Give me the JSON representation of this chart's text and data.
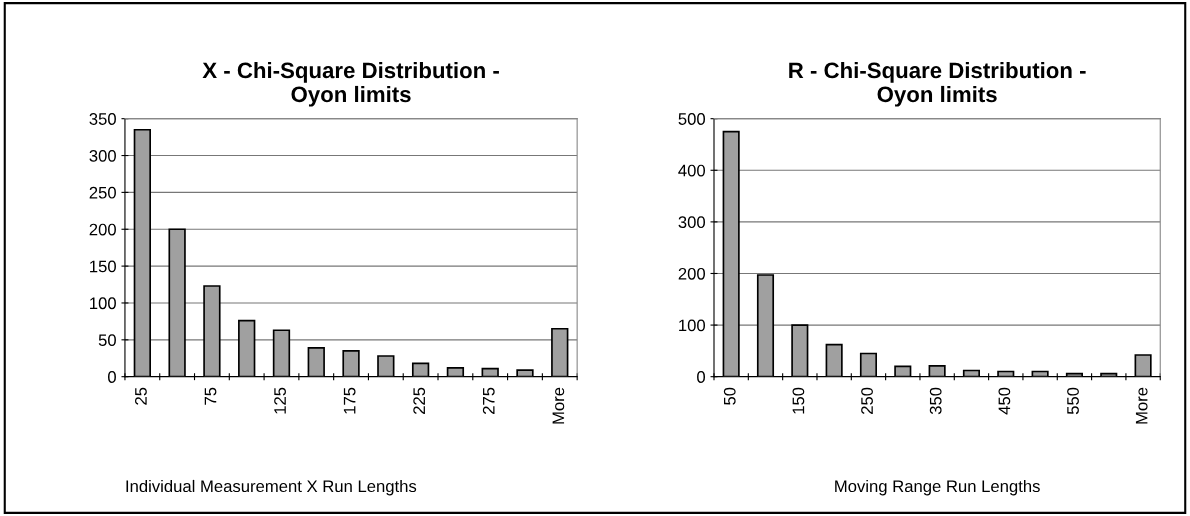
{
  "chart_data": [
    {
      "type": "bar",
      "title": "X - Chi-Square Distribution -\nOyon limits",
      "xlabel": "Individual Measurement X Run Lengths",
      "categories": [
        "25",
        null,
        "75",
        null,
        "125",
        null,
        "175",
        null,
        "225",
        null,
        "275",
        null,
        "More"
      ],
      "values": [
        335,
        200,
        123,
        76,
        63,
        39,
        35,
        28,
        18,
        12,
        11,
        9,
        65
      ],
      "color": "#a0a0a0",
      "ylim": [
        0,
        350
      ],
      "yticks": [
        0,
        50,
        100,
        150,
        200,
        250,
        300,
        350
      ],
      "grid": "y"
    },
    {
      "type": "bar",
      "title": "R - Chi-Square Distribution -\nOyon limits",
      "xlabel": "Moving Range Run Lengths",
      "categories": [
        "50",
        null,
        "150",
        null,
        "250",
        null,
        "350",
        null,
        "450",
        null,
        "550",
        null,
        "More"
      ],
      "values": [
        475,
        197,
        100,
        62,
        45,
        20,
        21,
        12,
        10,
        10,
        6,
        6,
        42
      ],
      "color": "#a0a0a0",
      "ylim": [
        0,
        500
      ],
      "yticks": [
        0,
        100,
        200,
        300,
        400,
        500
      ],
      "grid": "y"
    }
  ]
}
